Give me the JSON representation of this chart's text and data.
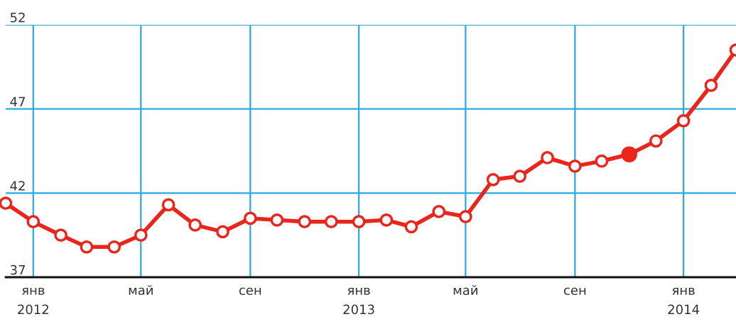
{
  "chart_data": {
    "type": "line",
    "x": [
      "2011-12",
      "2012-01",
      "2012-02",
      "2012-03",
      "2012-04",
      "2012-05",
      "2012-06",
      "2012-07",
      "2012-08",
      "2012-09",
      "2012-10",
      "2012-11",
      "2012-12",
      "2013-01",
      "2013-02",
      "2013-03",
      "2013-04",
      "2013-05",
      "2013-06",
      "2013-07",
      "2013-08",
      "2013-09",
      "2013-10",
      "2013-11",
      "2013-12",
      "2014-01",
      "2014-02",
      "2014-03"
    ],
    "series": [
      {
        "color": "#e8261c",
        "values": [
          41.4,
          40.3,
          39.5,
          38.8,
          38.8,
          39.5,
          41.3,
          40.1,
          39.7,
          40.5,
          40.4,
          40.3,
          40.3,
          40.3,
          40.4,
          40.0,
          40.9,
          40.6,
          42.8,
          43.0,
          44.1,
          43.6,
          43.9,
          44.3,
          45.1,
          46.3,
          48.4,
          50.5
        ]
      },
      {
        "type": "scatter",
        "color": "#e8261c",
        "x": [
          "2013-11"
        ],
        "values": [
          44.3
        ]
      }
    ],
    "xlim": [
      "2011-12",
      "2014-03"
    ],
    "xticks": [
      {
        "value": "2012-01",
        "label": "янв\n2012"
      },
      {
        "value": "2012-05",
        "label": "май"
      },
      {
        "value": "2012-09",
        "label": "сен"
      },
      {
        "value": "2013-01",
        "label": "янв\n2013"
      },
      {
        "value": "2013-05",
        "label": "май"
      },
      {
        "value": "2013-09",
        "label": "сен"
      },
      {
        "value": "2014-01",
        "label": "янв\n2014"
      }
    ],
    "ylim": [
      37,
      52
    ],
    "yticks": [
      37,
      42,
      47,
      52
    ],
    "grid": true,
    "marker": "circle",
    "line_style": "solid"
  }
}
